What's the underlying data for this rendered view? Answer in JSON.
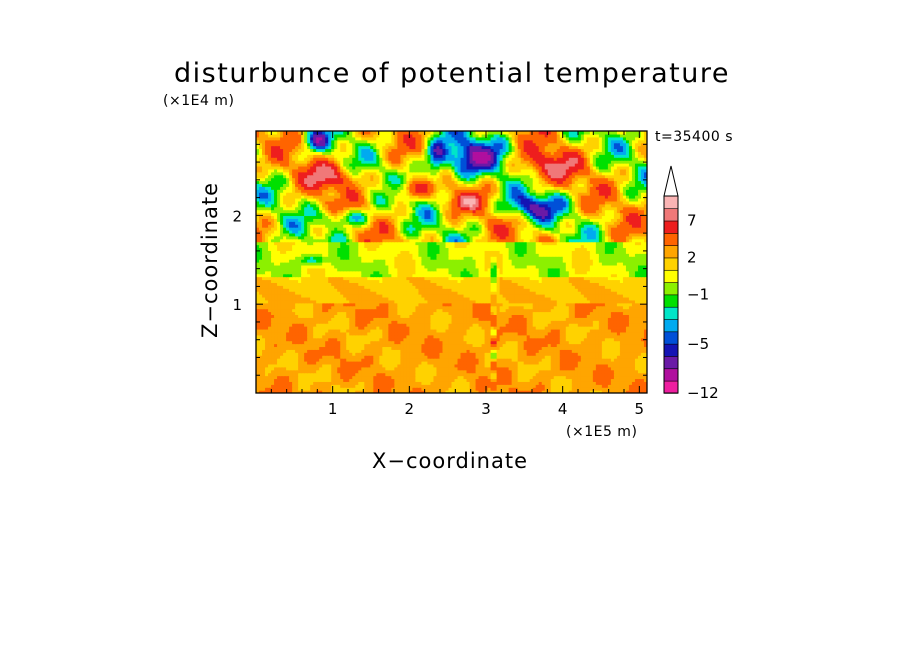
{
  "chart_data": {
    "type": "heatmap",
    "title": "disturbunce of potential temperature",
    "xlabel": "X−coordinate",
    "ylabel": "Z−coordinate",
    "x_unit": "(×1E5 m)",
    "z_unit": "(×1E4 m)",
    "time_label": "t=35400 s",
    "xlim": [
      0,
      5.1
    ],
    "ylim": [
      0,
      2.95
    ],
    "x_ticks": [
      1,
      2,
      3,
      4,
      5
    ],
    "y_ticks": [
      1,
      2
    ],
    "colorbar": {
      "levels": [
        -12,
        -10,
        -8,
        -6,
        -5,
        -4,
        -3,
        -2,
        -1,
        0,
        1,
        2,
        3,
        5,
        7,
        9,
        11
      ],
      "labeled_levels": [
        -12,
        -5,
        -1,
        2,
        7
      ],
      "colors": [
        "#ee1ea0",
        "#b00f9e",
        "#6a1aa6",
        "#1414b4",
        "#0050d8",
        "#00aaf0",
        "#00e6c8",
        "#00e000",
        "#8cf000",
        "#ffff00",
        "#ffd200",
        "#ffa500",
        "#ff6400",
        "#ee1e1e",
        "#f07878",
        "#fab4b4"
      ],
      "extend": "max"
    }
  },
  "ui": {
    "x_tick_labels": [
      "1",
      "2",
      "3",
      "4",
      "5"
    ],
    "y_tick_labels": [
      "1",
      "2"
    ],
    "colorbar_tick_labels": [
      "−12",
      "−5",
      "−1",
      "2",
      "7"
    ]
  }
}
